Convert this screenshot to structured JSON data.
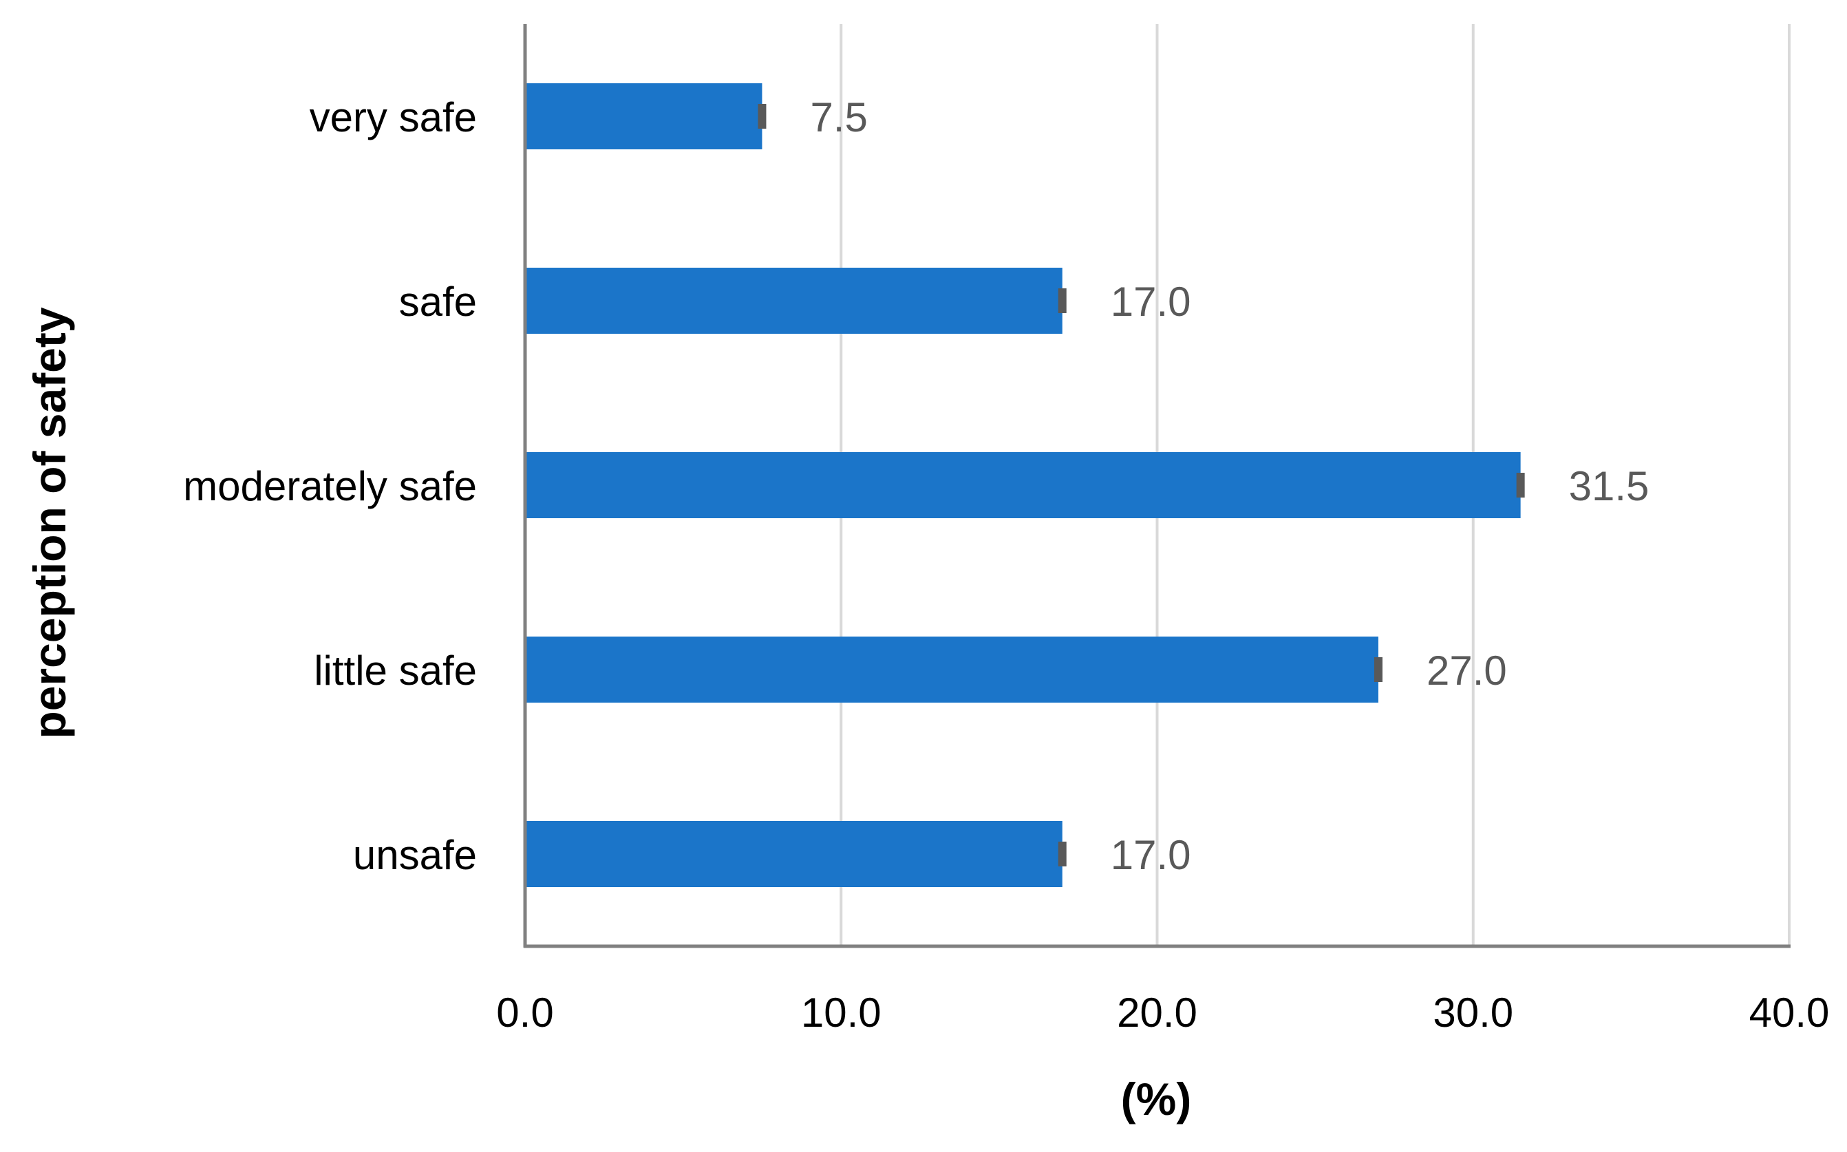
{
  "chart_data": {
    "type": "bar",
    "orientation": "horizontal",
    "categories": [
      "very safe",
      "safe",
      "moderately safe",
      "little safe",
      "unsafe"
    ],
    "values": [
      7.5,
      17.0,
      31.5,
      27.0,
      17.0
    ],
    "value_labels": [
      "7.5",
      "17.0",
      "31.5",
      "27.0",
      "17.0"
    ],
    "error_bars": true,
    "title": "",
    "xlabel": "(%)",
    "ylabel": "perception of safety",
    "xlim": [
      0,
      40
    ],
    "xticks": [
      0,
      10,
      20,
      30,
      40
    ],
    "xtick_labels": [
      "0.0",
      "10.0",
      "20.0",
      "30.0",
      "40.0"
    ],
    "grid": true,
    "legend": "none",
    "colors": {
      "bar": "#1b75c9",
      "gridline": "#d9d9d9",
      "axis": "#808080",
      "error_bar": "#595959",
      "value_label": "#595959"
    }
  }
}
